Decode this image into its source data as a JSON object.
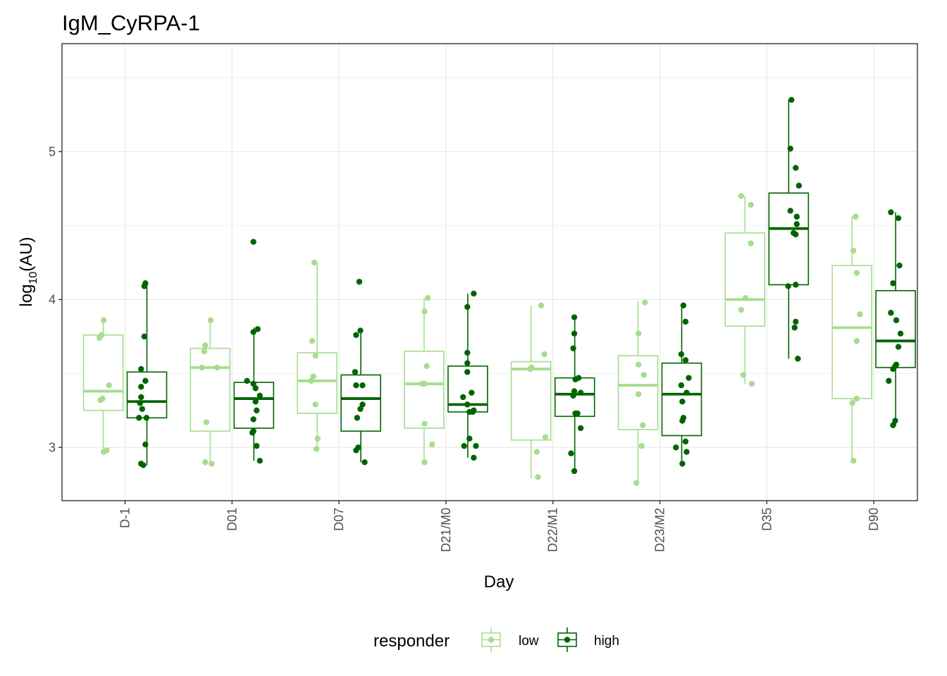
{
  "colors": {
    "low": "#a6dd8e",
    "high": "#006400",
    "grid": "#ebebeb",
    "panel_border": "#333333"
  },
  "chart_data": {
    "type": "boxplot",
    "title": "IgM_CyRPA-1",
    "xlabel": "Day",
    "ylabel_main": "log",
    "ylabel_sub": "10",
    "ylabel_tail": "(AU)",
    "ylim": [
      2.64,
      5.73
    ],
    "yticks": [
      3,
      4,
      5
    ],
    "ytick_labels": [
      "3",
      "4",
      "5"
    ],
    "categories": [
      "D-1",
      "D01",
      "D07",
      "D21/M0",
      "D22/M1",
      "D23/M2",
      "D35",
      "D90"
    ],
    "legend": {
      "title": "responder",
      "position": "bottom"
    },
    "series": [
      {
        "name": "low",
        "color": "#a6dd8e",
        "boxes": [
          {
            "q1": 3.25,
            "median": 3.38,
            "q3": 3.76,
            "whisker_low": 2.96,
            "whisker_high": 3.86
          },
          {
            "q1": 3.11,
            "median": 3.54,
            "q3": 3.67,
            "whisker_low": 2.89,
            "whisker_high": 3.86
          },
          {
            "q1": 3.23,
            "median": 3.45,
            "q3": 3.64,
            "whisker_low": 2.98,
            "whisker_high": 4.25
          },
          {
            "q1": 3.13,
            "median": 3.43,
            "q3": 3.65,
            "whisker_low": 2.9,
            "whisker_high": 4.01
          },
          {
            "q1": 3.05,
            "median": 3.53,
            "q3": 3.58,
            "whisker_low": 2.79,
            "whisker_high": 3.96
          },
          {
            "q1": 3.12,
            "median": 3.42,
            "q3": 3.62,
            "whisker_low": 2.75,
            "whisker_high": 3.99
          },
          {
            "q1": 3.82,
            "median": 4.0,
            "q3": 4.45,
            "whisker_low": 3.43,
            "whisker_high": 4.7
          },
          {
            "q1": 3.33,
            "median": 3.81,
            "q3": 4.23,
            "whisker_low": 2.91,
            "whisker_high": 4.56
          }
        ],
        "points": [
          [
            [
              -0.2,
              3.86
            ],
            [
              -0.22,
              3.76
            ],
            [
              -0.24,
              3.74
            ],
            [
              -0.15,
              3.42
            ],
            [
              -0.21,
              3.33
            ],
            [
              -0.23,
              3.32
            ],
            [
              -0.2,
              2.97
            ],
            [
              -0.17,
              2.98
            ]
          ],
          [
            [
              -0.2,
              3.86
            ],
            [
              -0.25,
              3.69
            ],
            [
              -0.26,
              3.65
            ],
            [
              -0.28,
              3.54
            ],
            [
              -0.14,
              3.54
            ],
            [
              -0.24,
              3.17
            ],
            [
              -0.25,
              2.9
            ],
            [
              -0.19,
              2.89
            ]
          ],
          [
            [
              -0.23,
              4.25
            ],
            [
              -0.25,
              3.72
            ],
            [
              -0.22,
              3.62
            ],
            [
              -0.24,
              3.48
            ],
            [
              -0.26,
              3.45
            ],
            [
              -0.22,
              3.29
            ],
            [
              -0.2,
              3.06
            ],
            [
              -0.21,
              2.99
            ]
          ],
          [
            [
              -0.17,
              4.01
            ],
            [
              -0.2,
              3.92
            ],
            [
              -0.18,
              3.55
            ],
            [
              -0.22,
              3.43
            ],
            [
              -0.2,
              3.43
            ],
            [
              -0.2,
              3.16
            ],
            [
              -0.13,
              3.02
            ],
            [
              -0.2,
              2.9
            ]
          ],
          [
            [
              -0.11,
              3.96
            ],
            [
              -0.21,
              3.53
            ],
            [
              -0.2,
              3.54
            ],
            [
              -0.08,
              3.63
            ],
            [
              -0.07,
              3.07
            ],
            [
              -0.15,
              2.97
            ],
            [
              -0.14,
              2.8
            ]
          ],
          [
            [
              -0.14,
              3.98
            ],
            [
              -0.2,
              3.77
            ],
            [
              -0.2,
              3.56
            ],
            [
              -0.15,
              3.49
            ],
            [
              -0.2,
              3.36
            ],
            [
              -0.16,
              3.15
            ],
            [
              -0.17,
              3.01
            ],
            [
              -0.22,
              2.76
            ]
          ],
          [
            [
              -0.24,
              4.7
            ],
            [
              -0.15,
              4.64
            ],
            [
              -0.15,
              4.38
            ],
            [
              -0.2,
              4.01
            ],
            [
              -0.24,
              3.93
            ],
            [
              -0.22,
              3.49
            ],
            [
              -0.14,
              3.43
            ]
          ],
          [
            [
              -0.17,
              4.56
            ],
            [
              -0.19,
              4.33
            ],
            [
              -0.16,
              4.18
            ],
            [
              -0.13,
              3.9
            ],
            [
              -0.16,
              3.72
            ],
            [
              -0.16,
              3.33
            ],
            [
              -0.2,
              3.3
            ],
            [
              -0.19,
              2.91
            ]
          ]
        ]
      },
      {
        "name": "high",
        "color": "#006400",
        "boxes": [
          {
            "q1": 3.2,
            "median": 3.31,
            "q3": 3.51,
            "whisker_low": 2.88,
            "whisker_high": 4.11
          },
          {
            "q1": 3.13,
            "median": 3.33,
            "q3": 3.44,
            "whisker_low": 2.91,
            "whisker_high": 3.81
          },
          {
            "q1": 3.11,
            "median": 3.33,
            "q3": 3.49,
            "whisker_low": 2.9,
            "whisker_high": 3.79
          },
          {
            "q1": 3.24,
            "median": 3.29,
            "q3": 3.55,
            "whisker_low": 2.93,
            "whisker_high": 4.04
          },
          {
            "q1": 3.21,
            "median": 3.36,
            "q3": 3.47,
            "whisker_low": 2.84,
            "whisker_high": 3.88
          },
          {
            "q1": 3.08,
            "median": 3.36,
            "q3": 3.57,
            "whisker_low": 2.89,
            "whisker_high": 3.96
          },
          {
            "q1": 4.1,
            "median": 4.48,
            "q3": 4.72,
            "whisker_low": 3.6,
            "whisker_high": 5.35
          },
          {
            "q1": 3.54,
            "median": 3.72,
            "q3": 4.06,
            "whisker_low": 3.15,
            "whisker_high": 4.59
          }
        ],
        "points": [
          [
            [
              0.19,
              4.11
            ],
            [
              0.18,
              4.09
            ],
            [
              0.18,
              3.75
            ],
            [
              0.15,
              3.53
            ],
            [
              0.19,
              3.45
            ],
            [
              0.15,
              3.41
            ],
            [
              0.15,
              3.34
            ],
            [
              0.14,
              3.3
            ],
            [
              0.16,
              3.26
            ],
            [
              0.13,
              3.2
            ],
            [
              0.2,
              3.2
            ],
            [
              0.19,
              3.02
            ],
            [
              0.15,
              2.89
            ],
            [
              0.17,
              2.88
            ]
          ],
          [
            [
              0.2,
              4.39
            ],
            [
              0.24,
              3.8
            ],
            [
              0.2,
              3.78
            ],
            [
              0.14,
              3.45
            ],
            [
              0.2,
              3.43
            ],
            [
              0.22,
              3.4
            ],
            [
              0.26,
              3.35
            ],
            [
              0.22,
              3.31
            ],
            [
              0.23,
              3.25
            ],
            [
              0.2,
              3.19
            ],
            [
              0.2,
              3.11
            ],
            [
              0.19,
              3.1
            ],
            [
              0.23,
              3.01
            ],
            [
              0.26,
              2.91
            ]
          ],
          [
            [
              0.19,
              4.12
            ],
            [
              0.2,
              3.79
            ],
            [
              0.16,
              3.76
            ],
            [
              0.15,
              3.51
            ],
            [
              0.16,
              3.42
            ],
            [
              0.22,
              3.42
            ],
            [
              0.22,
              3.29
            ],
            [
              0.2,
              3.26
            ],
            [
              0.17,
              3.2
            ],
            [
              0.18,
              3.0
            ],
            [
              0.16,
              2.98
            ],
            [
              0.24,
              2.9
            ]
          ],
          [
            [
              0.26,
              4.04
            ],
            [
              0.2,
              3.95
            ],
            [
              0.2,
              3.64
            ],
            [
              0.2,
              3.57
            ],
            [
              0.2,
              3.51
            ],
            [
              0.24,
              3.37
            ],
            [
              0.16,
              3.34
            ],
            [
              0.2,
              3.29
            ],
            [
              0.26,
              3.25
            ],
            [
              0.22,
              3.24
            ],
            [
              0.25,
              3.24
            ],
            [
              0.22,
              3.06
            ],
            [
              0.17,
              3.01
            ],
            [
              0.28,
              3.01
            ],
            [
              0.26,
              2.93
            ]
          ],
          [
            [
              0.2,
              3.88
            ],
            [
              0.2,
              3.77
            ],
            [
              0.19,
              3.67
            ],
            [
              0.24,
              3.47
            ],
            [
              0.21,
              3.46
            ],
            [
              0.2,
              3.38
            ],
            [
              0.19,
              3.35
            ],
            [
              0.26,
              3.37
            ],
            [
              0.23,
              3.23
            ],
            [
              0.21,
              3.23
            ],
            [
              0.26,
              3.13
            ],
            [
              0.17,
              2.96
            ],
            [
              0.2,
              2.84
            ]
          ],
          [
            [
              0.22,
              3.96
            ],
            [
              0.24,
              3.85
            ],
            [
              0.2,
              3.63
            ],
            [
              0.24,
              3.59
            ],
            [
              0.27,
              3.47
            ],
            [
              0.2,
              3.42
            ],
            [
              0.25,
              3.37
            ],
            [
              0.21,
              3.31
            ],
            [
              0.22,
              3.2
            ],
            [
              0.21,
              3.18
            ],
            [
              0.24,
              3.04
            ],
            [
              0.15,
              3.0
            ],
            [
              0.25,
              2.97
            ],
            [
              0.21,
              2.89
            ]
          ],
          [
            [
              0.23,
              5.35
            ],
            [
              0.22,
              5.02
            ],
            [
              0.27,
              4.89
            ],
            [
              0.3,
              4.77
            ],
            [
              0.22,
              4.6
            ],
            [
              0.28,
              4.56
            ],
            [
              0.28,
              4.51
            ],
            [
              0.25,
              4.45
            ],
            [
              0.27,
              4.44
            ],
            [
              0.27,
              4.1
            ],
            [
              0.2,
              4.09
            ],
            [
              0.27,
              3.85
            ],
            [
              0.26,
              3.81
            ],
            [
              0.29,
              3.6
            ]
          ],
          [
            [
              0.16,
              4.59
            ],
            [
              0.23,
              4.55
            ],
            [
              0.24,
              4.23
            ],
            [
              0.18,
              4.11
            ],
            [
              0.16,
              3.91
            ],
            [
              0.21,
              3.86
            ],
            [
              0.25,
              3.77
            ],
            [
              0.23,
              3.68
            ],
            [
              0.21,
              3.56
            ],
            [
              0.2,
              3.55
            ],
            [
              0.18,
              3.53
            ],
            [
              0.14,
              3.45
            ],
            [
              0.2,
              3.18
            ],
            [
              0.18,
              3.15
            ]
          ]
        ]
      }
    ]
  }
}
